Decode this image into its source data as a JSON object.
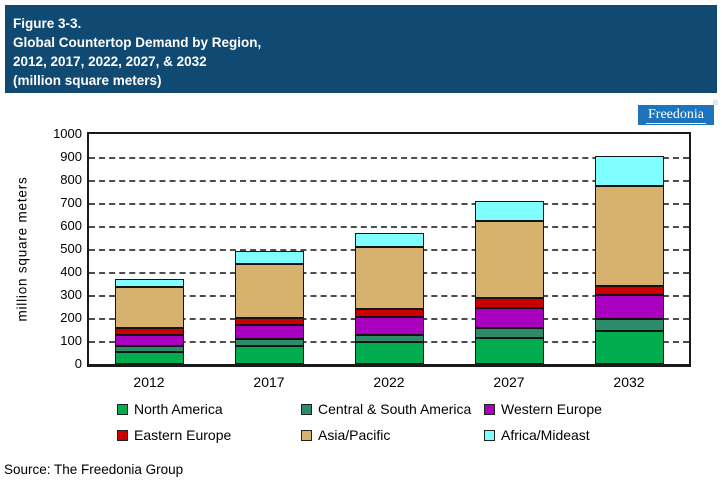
{
  "header": {
    "bg": "#104A73",
    "lines": [
      "Figure 3-3.",
      "Global Countertop Demand by Region,",
      "2012, 2017, 2022, 2027, & 2032",
      "(million square meters)"
    ]
  },
  "logo": {
    "text": "Freedonia",
    "reg_mark": "®",
    "bg": "#1B74BC"
  },
  "source": "Source: The Freedonia Group",
  "chart_data": {
    "type": "bar",
    "stacked": true,
    "title": "Global Countertop Demand by Region (million square meters)",
    "categories": [
      "2012",
      "2017",
      "2022",
      "2027",
      "2032"
    ],
    "series": [
      {
        "name": "North America",
        "color": "#00AC4D",
        "values": [
          52,
          80,
          95,
          115,
          145
        ]
      },
      {
        "name": "Central & South America",
        "color": "#2E8B6A",
        "values": [
          26,
          28,
          30,
          40,
          50
        ]
      },
      {
        "name": "Western Europe",
        "color": "#A800BE",
        "values": [
          50,
          62,
          80,
          90,
          105
        ]
      },
      {
        "name": "Eastern Europe",
        "color": "#CC0000",
        "values": [
          30,
          30,
          35,
          40,
          40
        ]
      },
      {
        "name": "Asia/Pacific",
        "color": "#D6B26E",
        "values": [
          175,
          235,
          270,
          335,
          435
        ]
      },
      {
        "name": "Africa/Mideast",
        "color": "#7FFFFF",
        "values": [
          37,
          55,
          60,
          90,
          130
        ]
      }
    ],
    "totals": [
      370,
      490,
      570,
      710,
      905
    ],
    "xlabel": "",
    "ylabel": "million square meters",
    "ylim": [
      0,
      1000
    ],
    "yticks": [
      0,
      100,
      200,
      300,
      400,
      500,
      600,
      700,
      800,
      900,
      1000
    ],
    "grid": "horizontal-dashed",
    "legend_position": "bottom"
  }
}
